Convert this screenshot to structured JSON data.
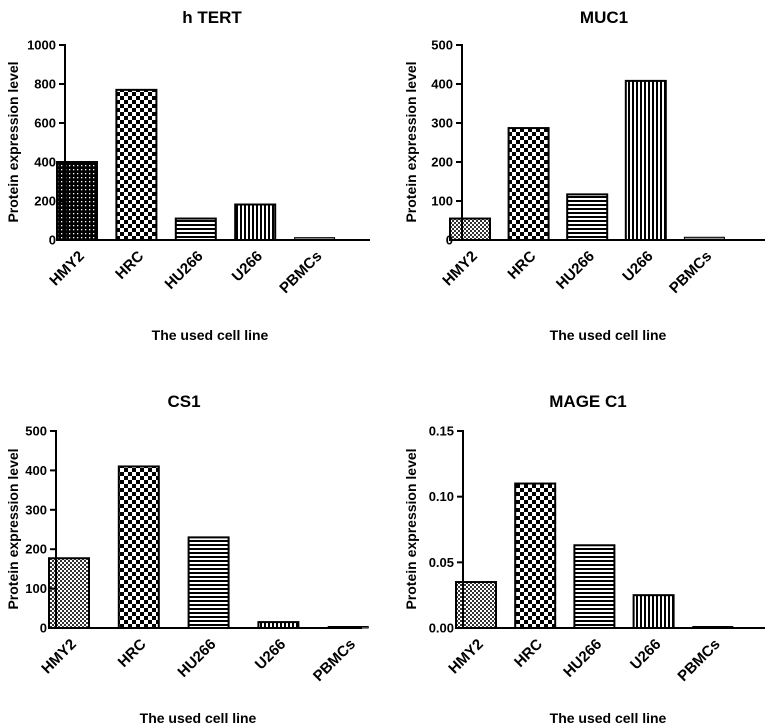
{
  "chart_data": [
    {
      "type": "bar",
      "title": "h TERT",
      "xlabel": "The used cell line",
      "ylabel": "Protein expression level",
      "categories": [
        "HMY2",
        "HRC",
        "HU266",
        "U266",
        "PBMCs"
      ],
      "values": [
        400,
        770,
        110,
        182,
        12
      ],
      "patterns": [
        "dots",
        "checker",
        "hlines",
        "vlines",
        "grid"
      ],
      "ylim": [
        0,
        1000
      ],
      "yticks": [
        0,
        200,
        400,
        600,
        800,
        1000
      ],
      "ytick_labels": [
        "0",
        "200",
        "400",
        "600",
        "800",
        "1000"
      ]
    },
    {
      "type": "bar",
      "title": "MUC1",
      "xlabel": "The used cell line",
      "ylabel": "Protein expression level",
      "categories": [
        "HMY2",
        "HRC",
        "HU266",
        "U266",
        "PBMCs"
      ],
      "values": [
        55,
        287,
        117,
        408,
        7
      ],
      "patterns": [
        "smallchecker",
        "checker",
        "hlines",
        "vlines",
        "grid"
      ],
      "ylim": [
        0,
        500
      ],
      "yticks": [
        0,
        100,
        200,
        300,
        400,
        500
      ],
      "ytick_labels": [
        "0",
        "100",
        "200",
        "300",
        "400",
        "500"
      ]
    },
    {
      "type": "bar",
      "title": "CS1",
      "xlabel": "The used cell line",
      "ylabel": "Protein expression level",
      "categories": [
        "HMY2",
        "HRC",
        "HU266",
        "U266",
        "PBMCs"
      ],
      "values": [
        177,
        410,
        230,
        15,
        3
      ],
      "patterns": [
        "smallchecker",
        "checker",
        "hlines",
        "vlines",
        "grid"
      ],
      "ylim": [
        0,
        500
      ],
      "yticks": [
        0,
        100,
        200,
        300,
        400,
        500
      ],
      "ytick_labels": [
        "0",
        "100",
        "200",
        "300",
        "400",
        "500"
      ]
    },
    {
      "type": "bar",
      "title": "MAGE C1",
      "xlabel": "The used cell line",
      "ylabel": "Protein expression level",
      "categories": [
        "HMY2",
        "HRC",
        "HU266",
        "U266",
        "PBMCs"
      ],
      "values": [
        0.035,
        0.11,
        0.063,
        0.025,
        0.001
      ],
      "patterns": [
        "smallchecker",
        "checker",
        "hlines",
        "vlines",
        "grid"
      ],
      "ylim": [
        0,
        0.15
      ],
      "yticks": [
        0,
        0.05,
        0.1,
        0.15
      ],
      "ytick_labels": [
        "0.00",
        "0.05",
        "0.10",
        "0.15"
      ]
    }
  ],
  "colors": {
    "ink": "#000000",
    "background": "#ffffff",
    "muted_bar": "#9a9a9a"
  }
}
